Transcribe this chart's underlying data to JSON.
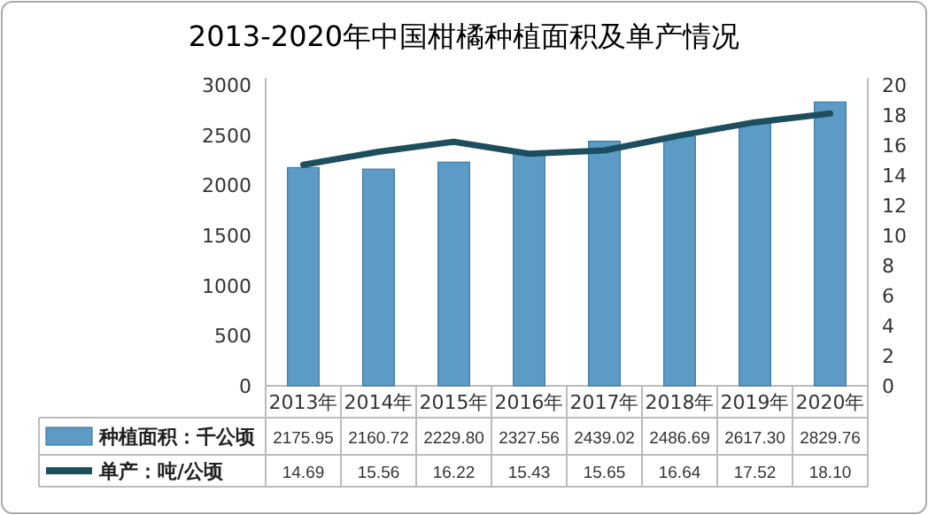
{
  "chart_data": {
    "type": "bar",
    "title": "2013-2020年中国柑橘种植面积及单产情况",
    "categories": [
      "2013年",
      "2014年",
      "2015年",
      "2016年",
      "2017年",
      "2018年",
      "2019年",
      "2020年"
    ],
    "series": [
      {
        "name": "种植面积：千公顷",
        "color": "#5b9bc6",
        "values": [
          2175.95,
          2160.72,
          2229.8,
          2327.56,
          2439.02,
          2486.69,
          2617.3,
          2829.76
        ],
        "value_labels": [
          "2175.95",
          "2160.72",
          "2229.80",
          "2327.56",
          "2439.02",
          "2486.69",
          "2617.30",
          "2829.76"
        ]
      },
      {
        "name": "单产：吨/公顷",
        "type": "line",
        "axis": "y2",
        "color": "#1d4e5e",
        "values": [
          14.69,
          15.56,
          16.22,
          15.43,
          15.65,
          16.64,
          17.52,
          18.1
        ],
        "value_labels": [
          "14.69",
          "15.56",
          "16.22",
          "15.43",
          "15.65",
          "16.64",
          "17.52",
          "18.10"
        ]
      }
    ],
    "ylim": [
      0,
      3000
    ],
    "yticks": [
      0,
      500,
      1000,
      1500,
      2000,
      2500,
      3000
    ],
    "y2lim": [
      0,
      20
    ],
    "y2ticks": [
      0,
      2,
      4,
      6,
      8,
      10,
      12,
      14,
      16,
      18,
      20
    ],
    "legend": "bottom",
    "data_labels": true
  }
}
